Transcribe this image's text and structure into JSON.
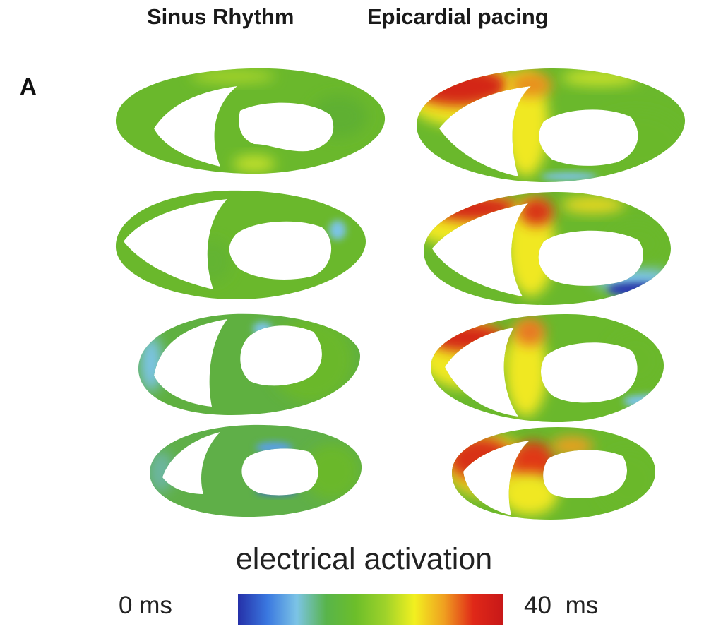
{
  "columns": [
    "Sinus Rhythm",
    "Epicardial pacing"
  ],
  "panel_label": "A",
  "colorbar": {
    "title": "electrical activation",
    "min_label": "0 ms",
    "max_label": "40  ms",
    "stops": [
      "#2530a8",
      "#3a78e0",
      "#7cc4e6",
      "#58b44a",
      "#6cbe2a",
      "#9ed22a",
      "#f2f020",
      "#f0a020",
      "#e02818",
      "#c81818"
    ]
  },
  "slice_colors": {
    "sinus_rhythm": "#6ab82c",
    "epicardial_pacing_dominant": "#6ab82c",
    "early": "#3a70d0",
    "mid": "#7cc4e6",
    "late": "#d42818",
    "transition": "#f0ec1c"
  }
}
